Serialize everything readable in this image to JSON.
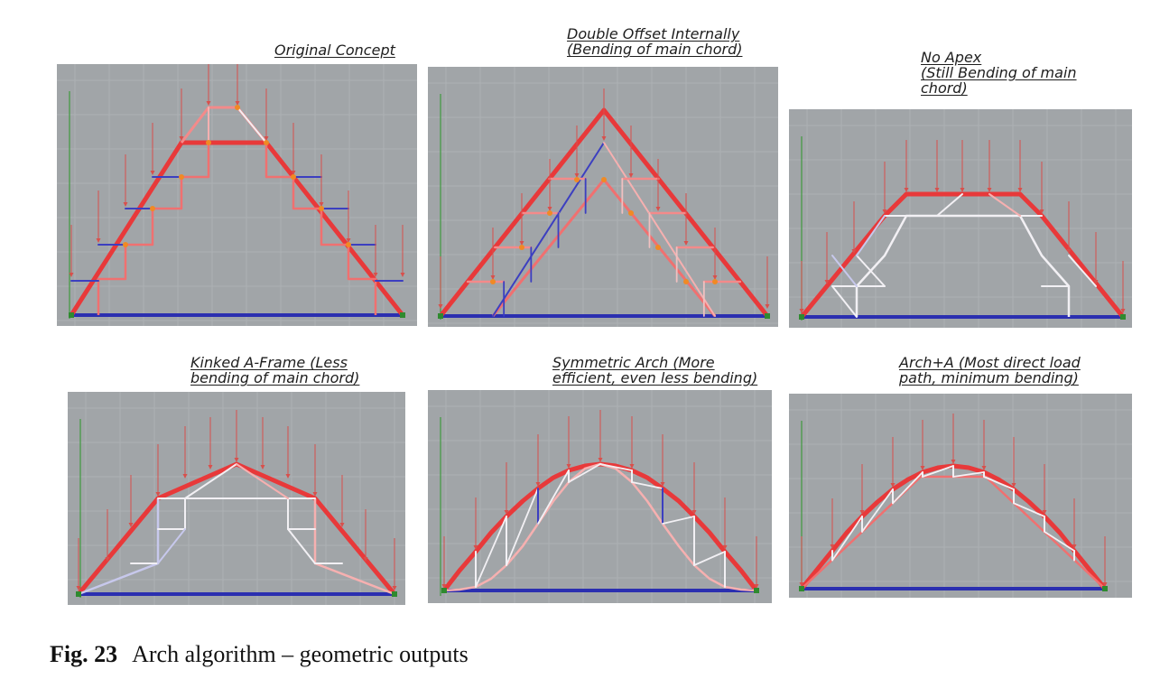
{
  "figure": {
    "number": "Fig. 23",
    "caption": "Arch algorithm – geometric outputs"
  },
  "panels": [
    {
      "id": "original",
      "label": "Original Concept"
    },
    {
      "id": "double-offset",
      "label": "Double Offset Internally\n(Bending of main chord)"
    },
    {
      "id": "no-apex",
      "label": "No Apex\n(Still Bending of main\nchord)"
    },
    {
      "id": "kinked-a-frame",
      "label": "Kinked A-Frame (Less\nbending of main chord)"
    },
    {
      "id": "symmetric-arch",
      "label": "Symmetric Arch (More\nefficient, even less bending)"
    },
    {
      "id": "arch-a",
      "label": "Arch+A (Most direct load\npath, minimum bending)"
    }
  ],
  "colors": {
    "panel_bg": "#a1a5a8",
    "grid": "#adb1b4",
    "tie": "#2b2fb0",
    "chord": "#e8393a",
    "load": "#d8504c",
    "node": "#f08a24",
    "web_blue": "#3c3fc0",
    "web_white": "#f2f0f4",
    "web_pink": "#f4a8a8"
  }
}
